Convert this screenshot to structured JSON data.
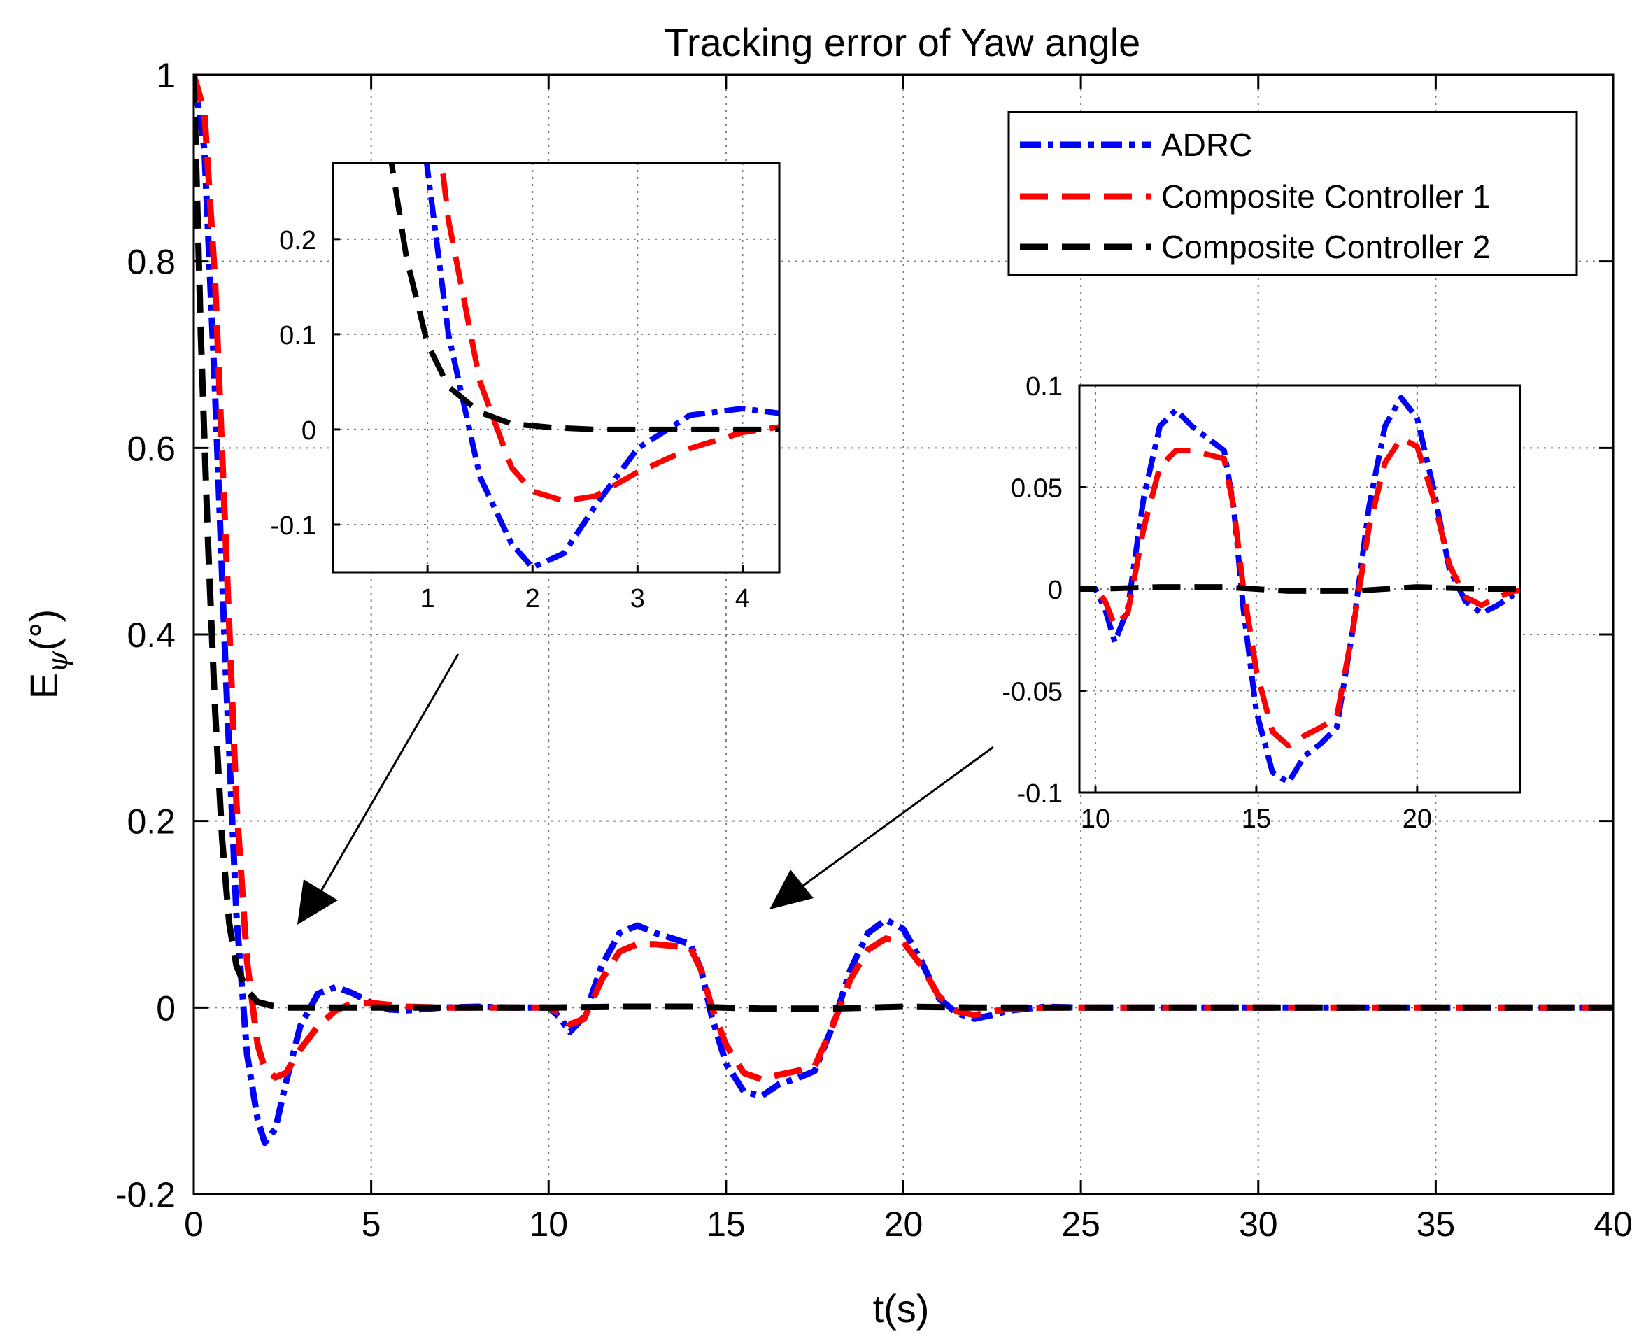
{
  "chart_data": [
    {
      "id": "main",
      "type": "line",
      "title": "Tracking error of Yaw angle",
      "xlabel": "t(s)",
      "ylabel_main": "E",
      "ylabel_sub": "ψ",
      "ylabel_unit": "(°)",
      "xlim": [
        0,
        40
      ],
      "ylim": [
        -0.2,
        1
      ],
      "xticks": [
        0,
        5,
        10,
        15,
        20,
        25,
        30,
        35,
        40
      ],
      "yticks": [
        -0.2,
        0,
        0.2,
        0.4,
        0.6,
        0.8,
        1
      ],
      "xtick_labels": [
        "0",
        "5",
        "10",
        "15",
        "20",
        "25",
        "30",
        "35",
        "40"
      ],
      "ytick_labels": [
        "-0.2",
        "0",
        "0.2",
        "0.4",
        "0.6",
        "0.8",
        "1"
      ],
      "grid": true,
      "legend_position": "top-right",
      "series": [
        {
          "name": "ADRC",
          "color": "#0000ff",
          "style": "dash-dot",
          "x": [
            0,
            0.3,
            0.6,
            0.9,
            1.2,
            1.5,
            1.8,
            2.0,
            2.3,
            2.6,
            3.0,
            3.5,
            4.0,
            4.5,
            5.0,
            5.5,
            6.0,
            7.0,
            8.0,
            9.0,
            10.0,
            10.3,
            10.6,
            11.0,
            11.5,
            12.0,
            12.5,
            13.0,
            13.5,
            14.0,
            14.3,
            14.6,
            15.0,
            15.5,
            16.0,
            16.5,
            17.0,
            17.5,
            18.0,
            18.5,
            19.0,
            19.5,
            20.0,
            20.5,
            21.0,
            21.5,
            22.0,
            22.5,
            23.0,
            24.0,
            25.0,
            30.0,
            35.0,
            40.0
          ],
          "y": [
            1.0,
            0.92,
            0.66,
            0.36,
            0.1,
            -0.05,
            -0.12,
            -0.145,
            -0.13,
            -0.08,
            -0.02,
            0.015,
            0.022,
            0.015,
            0.005,
            -0.002,
            -0.003,
            0.0,
            0.001,
            0.0,
            0.0,
            -0.01,
            -0.026,
            -0.01,
            0.045,
            0.08,
            0.088,
            0.08,
            0.074,
            0.068,
            0.04,
            -0.01,
            -0.06,
            -0.09,
            -0.095,
            -0.082,
            -0.076,
            -0.068,
            -0.02,
            0.04,
            0.08,
            0.094,
            0.084,
            0.05,
            0.01,
            -0.006,
            -0.012,
            -0.008,
            -0.003,
            0.001,
            0.0,
            0.0,
            0.0,
            0.0
          ]
        },
        {
          "name": "Composite Controller 1",
          "color": "#ff0000",
          "style": "dashed",
          "x": [
            0,
            0.3,
            0.6,
            0.9,
            1.2,
            1.5,
            1.8,
            2.0,
            2.3,
            2.6,
            3.0,
            3.5,
            4.0,
            4.5,
            5.0,
            6.0,
            7.0,
            8.0,
            9.0,
            10.0,
            10.3,
            10.6,
            11.0,
            11.5,
            12.0,
            12.5,
            13.0,
            13.5,
            14.0,
            14.3,
            14.6,
            15.0,
            15.5,
            16.0,
            16.5,
            17.0,
            17.5,
            18.0,
            18.5,
            19.0,
            19.5,
            20.0,
            20.5,
            21.0,
            21.5,
            22.0,
            22.5,
            23.0,
            24.0,
            25.0,
            30.0,
            35.0,
            40.0
          ],
          "y": [
            1.0,
            0.96,
            0.78,
            0.5,
            0.22,
            0.05,
            -0.04,
            -0.065,
            -0.075,
            -0.07,
            -0.045,
            -0.02,
            -0.003,
            0.005,
            0.005,
            0.001,
            0.0,
            0.0,
            0.0,
            0.0,
            -0.006,
            -0.018,
            -0.012,
            0.03,
            0.06,
            0.068,
            0.068,
            0.066,
            0.064,
            0.04,
            0.0,
            -0.04,
            -0.07,
            -0.077,
            -0.072,
            -0.068,
            -0.063,
            -0.02,
            0.03,
            0.062,
            0.074,
            0.07,
            0.045,
            0.012,
            -0.004,
            -0.008,
            -0.004,
            -0.001,
            0.0,
            0.0,
            0.0,
            0.0,
            0.0
          ]
        },
        {
          "name": "Composite Controller 2",
          "color": "#000000",
          "style": "dashed",
          "x": [
            0,
            0.2,
            0.4,
            0.6,
            0.8,
            1.0,
            1.2,
            1.5,
            1.8,
            2.2,
            2.6,
            3.0,
            4.0,
            5.0,
            10.0,
            12.0,
            14.0,
            16.0,
            18.0,
            20.0,
            22.0,
            25.0,
            30.0,
            35.0,
            40.0
          ],
          "y": [
            1.0,
            0.72,
            0.5,
            0.32,
            0.18,
            0.09,
            0.045,
            0.018,
            0.006,
            0.002,
            0.0,
            0.0,
            0.0,
            0.0,
            0.0,
            0.001,
            0.001,
            -0.001,
            -0.001,
            0.001,
            0.0,
            0.0,
            0.0,
            0.0,
            0.0
          ]
        }
      ]
    },
    {
      "id": "inset-1",
      "type": "line",
      "title": "",
      "xlim": [
        0.1,
        4.35
      ],
      "ylim": [
        -0.15,
        0.28
      ],
      "xticks": [
        1,
        2,
        3,
        4
      ],
      "yticks": [
        -0.1,
        0,
        0.1,
        0.2
      ],
      "xtick_labels": [
        "1",
        "2",
        "3",
        "4"
      ],
      "ytick_labels": [
        "-0.1",
        "0",
        "0.1",
        "0.2"
      ],
      "grid": true
    },
    {
      "id": "inset-2",
      "type": "line",
      "title": "",
      "xlim": [
        9.5,
        23.2
      ],
      "ylim": [
        -0.1,
        0.1
      ],
      "xticks": [
        10,
        15,
        20
      ],
      "yticks": [
        -0.1,
        -0.05,
        0,
        0.05,
        0.1
      ],
      "xtick_labels": [
        "10",
        "15",
        "20"
      ],
      "ytick_labels": [
        "-0.1",
        "-0.05",
        "0",
        "0.05",
        "0.1"
      ],
      "grid": true
    }
  ]
}
